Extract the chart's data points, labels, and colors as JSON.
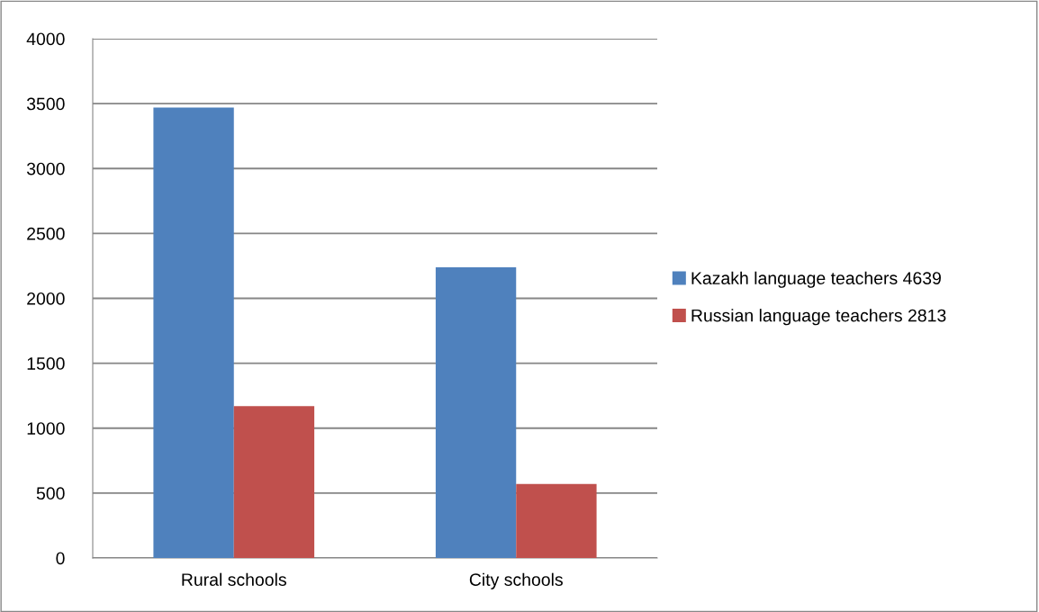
{
  "chart_data": {
    "type": "bar",
    "categories": [
      "Rural schools",
      "City schools"
    ],
    "series": [
      {
        "name": "Kazakh language teachers 4639",
        "color": "#4f81bd",
        "values": [
          3470,
          2240
        ]
      },
      {
        "name": "Russian language teachers 2813",
        "color": "#c0504d",
        "values": [
          1170,
          570
        ]
      }
    ],
    "ylim": [
      0,
      4000
    ],
    "yticks": [
      0,
      500,
      1000,
      1500,
      2000,
      2500,
      3000,
      3500,
      4000
    ],
    "grid": "y",
    "legend": "right"
  }
}
